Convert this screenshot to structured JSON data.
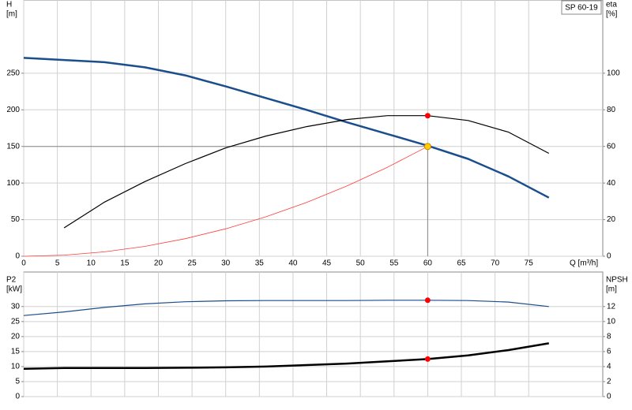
{
  "chart_data": [
    {
      "type": "line",
      "legend": "SP 60-19",
      "y_label_lines": [
        "H",
        "[m]"
      ],
      "y2_label_lines": [
        "eta",
        "[%]"
      ],
      "x_label": "Q [m³/h]",
      "xlim": [
        0,
        86
      ],
      "xticks": [
        0,
        5,
        10,
        15,
        20,
        25,
        30,
        35,
        40,
        45,
        50,
        55,
        60,
        65,
        70,
        75
      ],
      "ylim": [
        0,
        350
      ],
      "yticks": [
        0,
        50,
        100,
        150,
        200,
        250
      ],
      "y2lim": [
        0,
        140
      ],
      "y2ticks": [
        0,
        20,
        40,
        60,
        80,
        100
      ],
      "grid": true,
      "duty_point": {
        "x": 60,
        "y": 150,
        "color": "#ffd000"
      },
      "series": [
        {
          "name": "H",
          "color": "#1a4e8c",
          "width": 2.5,
          "x": [
            0,
            6,
            12,
            18,
            24,
            30,
            36,
            42,
            48,
            54,
            60,
            66,
            72,
            78
          ],
          "values": [
            271,
            268,
            265,
            258,
            247,
            232,
            216,
            200,
            183,
            167,
            151,
            133,
            109,
            80
          ]
        },
        {
          "name": "eta",
          "color": "#000000",
          "width": 1.2,
          "axis": "y2",
          "marker_color": "#ff0000",
          "x": [
            6,
            12,
            18,
            24,
            30,
            36,
            42,
            48,
            54,
            60,
            66,
            72,
            78
          ],
          "values": [
            15.5,
            29.6,
            40.8,
            50.6,
            59.2,
            65.7,
            70.8,
            74.7,
            76.8,
            76.8,
            74.2,
            67.8,
            56.2
          ]
        },
        {
          "name": "system",
          "color": "#ff3b3b",
          "width": 0.8,
          "x": [
            0,
            6,
            12,
            18,
            24,
            30,
            36,
            42,
            48,
            54,
            60
          ],
          "values": [
            0,
            1.5,
            6,
            13.5,
            24,
            37.5,
            54,
            73.5,
            96,
            121.5,
            150
          ]
        }
      ]
    },
    {
      "type": "line",
      "y_label_lines": [
        "P2",
        "[kW]"
      ],
      "y2_label_lines": [
        "NPSH",
        "[m]"
      ],
      "xlim": [
        0,
        86
      ],
      "xticks": [
        0,
        5,
        10,
        15,
        20,
        25,
        30,
        35,
        40,
        45,
        50,
        55,
        60,
        65,
        70,
        75
      ],
      "ylim": [
        0,
        41.5
      ],
      "yticks": [
        0,
        5,
        10,
        15,
        20,
        25,
        30
      ],
      "y2lim": [
        0,
        16.6
      ],
      "y2ticks": [
        0,
        2,
        4,
        6,
        8,
        10,
        12
      ],
      "grid": true,
      "duty_point": {
        "x": 60
      },
      "series": [
        {
          "name": "P2",
          "color": "#1a4e8c",
          "width": 1.2,
          "marker_color": "#ff0000",
          "x": [
            0,
            6,
            12,
            18,
            24,
            30,
            36,
            42,
            48,
            54,
            60,
            66,
            72,
            78
          ],
          "values": [
            27,
            28.2,
            29.7,
            30.9,
            31.6,
            31.9,
            32,
            32,
            32,
            32.1,
            32.1,
            32,
            31.5,
            30
          ]
        },
        {
          "name": "NPSH",
          "color": "#000000",
          "width": 2.5,
          "axis": "y2",
          "marker_color": "#ff0000",
          "x": [
            0,
            6,
            12,
            18,
            24,
            30,
            36,
            42,
            48,
            54,
            60,
            66,
            72,
            78
          ],
          "values": [
            3.7,
            3.8,
            3.8,
            3.8,
            3.85,
            3.9,
            4.0,
            4.2,
            4.4,
            4.7,
            5.0,
            5.5,
            6.2,
            7.1
          ]
        }
      ]
    }
  ]
}
